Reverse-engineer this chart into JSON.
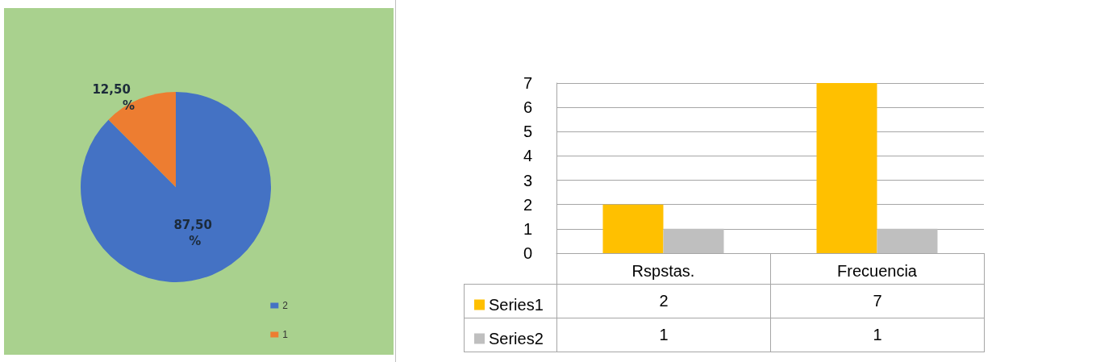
{
  "chart_data": [
    {
      "type": "pie",
      "categories": [
        "2",
        "1"
      ],
      "values": [
        87.5,
        12.5
      ],
      "colors": [
        "#4472c4",
        "#ed7d31"
      ],
      "value_labels": [
        "87,50 %",
        "12,50 %"
      ],
      "legend": "bottom right"
    },
    {
      "type": "bar",
      "categories": [
        "Rspstas.",
        "Frecuencia"
      ],
      "series": [
        {
          "name": "Series1",
          "color": "#ffc000",
          "values": [
            2,
            7
          ]
        },
        {
          "name": "Series2",
          "color": "#bfbfbf",
          "values": [
            1,
            1
          ]
        }
      ],
      "ylim": [
        0,
        7
      ],
      "yticks": [
        0,
        1,
        2,
        3,
        4,
        5,
        6,
        7
      ],
      "grid": "y",
      "legend": "bottom left",
      "data_labels": true
    }
  ]
}
